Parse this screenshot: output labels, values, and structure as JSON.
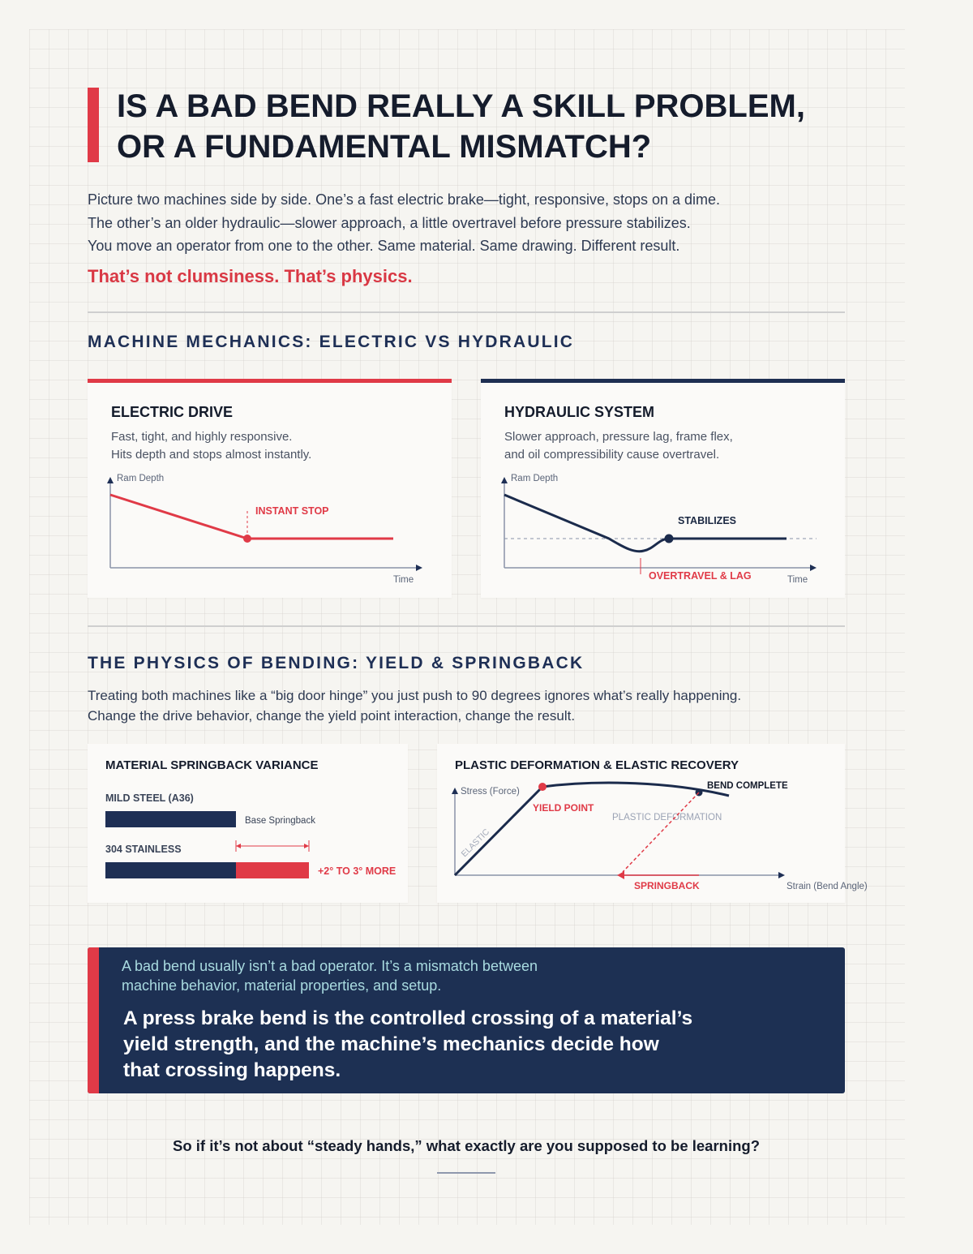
{
  "header": {
    "title_line1": "IS A BAD BEND REALLY A SKILL PROBLEM,",
    "title_line2": "OR A FUNDAMENTAL MISMATCH?"
  },
  "intro": {
    "line1": "Picture two machines side by side. One’s a fast electric brake—tight, responsive, stops on a dime.",
    "line2": "The other’s an older hydraulic—slower approach, a little overtravel before pressure stabilizes.",
    "line3": "You move an operator from one to the other. Same material. Same drawing. Different result.",
    "emphasis": "That’s not clumsiness. That’s physics."
  },
  "mechanics": {
    "heading": "MACHINE MECHANICS: ELECTRIC VS HYDRAULIC",
    "electric": {
      "title": "ELECTRIC DRIVE",
      "desc_line1": "Fast, tight, and highly responsive.",
      "desc_line2": "Hits depth and stops almost instantly.",
      "y_label": "Ram Depth",
      "x_label": "Time",
      "annotation": "INSTANT STOP"
    },
    "hydraulic": {
      "title": "HYDRAULIC SYSTEM",
      "desc_line1": "Slower approach, pressure lag, frame flex,",
      "desc_line2": "and oil compressibility cause overtravel.",
      "y_label": "Ram Depth",
      "x_label": "Time",
      "annotation_top": "STABILIZES",
      "annotation_bottom": "OVERTRAVEL & LAG"
    }
  },
  "physics": {
    "heading": "THE PHYSICS OF BENDING: YIELD & SPRINGBACK",
    "text_line1": "Treating both machines like a “big door hinge” you just push to 90 degrees ignores what’s really happening.",
    "text_line2": "Change the drive behavior, change the yield point interaction, change the result.",
    "springback": {
      "title": "MATERIAL SPRINGBACK VARIANCE",
      "mild_label": "MILD STEEL (A36)",
      "mild_note": "Base Springback",
      "stainless_label": "304 STAINLESS",
      "stainless_note": "+2° TO 3° MORE"
    },
    "deformation": {
      "title": "PLASTIC DEFORMATION & ELASTIC RECOVERY",
      "y_label": "Stress (Force)",
      "x_label": "Strain (Bend Angle)",
      "elastic_label": "ELASTIC",
      "yield_label": "YIELD POINT",
      "plastic_label": "PLASTIC DEFORMATION",
      "complete_label": "BEND COMPLETE",
      "springback_label": "SPRINGBACK"
    }
  },
  "callout": {
    "sub_line1": "A bad bend usually isn’t a bad operator. It’s a mismatch between",
    "sub_line2": "machine behavior, material properties, and setup.",
    "main_line1": "A press brake bend is the controlled crossing of a material’s",
    "main_line2": "yield strength, and the machine’s mechanics decide how",
    "main_line3": "that crossing happens."
  },
  "question": "So if it’s not about “steady hands,” what exactly are you supposed to be learning?",
  "colors": {
    "accent_red": "#e03a47",
    "navy": "#1d3053",
    "background": "#f6f5f1"
  }
}
